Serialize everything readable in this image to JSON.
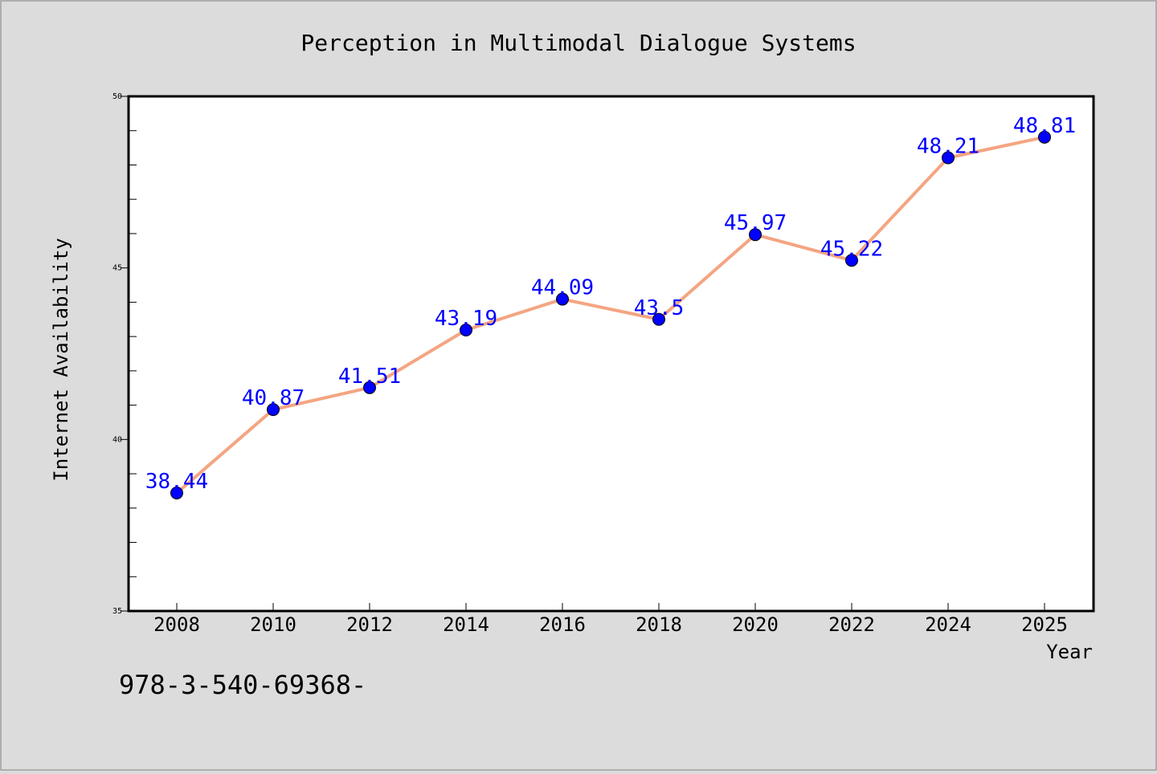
{
  "chart_data": {
    "type": "line",
    "title": "Perception in Multimodal Dialogue Systems",
    "xlabel": "Year",
    "ylabel": "Internet Availability",
    "categories": [
      "2008",
      "2010",
      "2012",
      "2014",
      "2016",
      "2018",
      "2020",
      "2022",
      "2024",
      "2025"
    ],
    "series": [
      {
        "values": [
          38.44,
          40.87,
          41.51,
          43.19,
          44.09,
          43.5,
          45.97,
          45.22,
          48.21,
          48.81
        ],
        "labels": [
          "38.44",
          "40.87",
          "41.51",
          "43.19",
          "44.09",
          "43.5",
          "45.97",
          "45.22",
          "48.21",
          "48.81"
        ]
      }
    ],
    "ylim": [
      35,
      50
    ],
    "yticks": [
      35,
      40,
      45,
      50
    ],
    "grid": false,
    "line_color": "#f4a582",
    "marker_color": "#0000ff",
    "label_color": "#0000ff"
  },
  "footer": {
    "isbn": "978-3-540-69368-"
  }
}
